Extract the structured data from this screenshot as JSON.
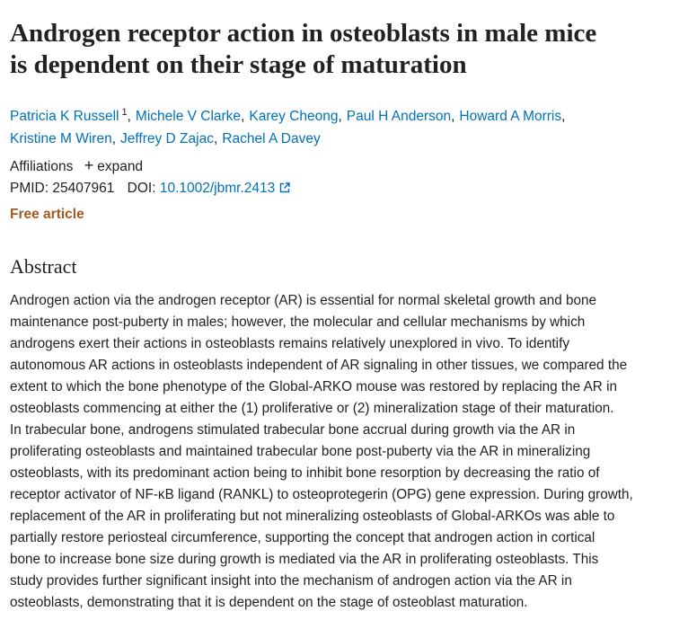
{
  "title_lines": [
    "Androgen receptor action in osteoblasts in male mice",
    "is dependent on their stage of maturation"
  ],
  "authors": [
    [
      "Patricia K Russell",
      "Michele V Clarke",
      "Karey Cheong",
      "Paul H Anderson",
      "Howard A Morris"
    ],
    [
      "Kristine M Wiren",
      "Jeffrey D Zajac",
      "Rachel A Davey"
    ]
  ],
  "first_author_affiliation": "1",
  "author_separator": ",",
  "affiliations": {
    "label": "Affiliations",
    "expand_icon": "+",
    "expand": "expand"
  },
  "identifiers": {
    "pmid_label": "PMID:",
    "pmid": "25407961",
    "doi_label": "DOI:",
    "doi": "10.1002/jbmr.2413"
  },
  "free_article": "Free article",
  "abstract": {
    "heading": "Abstract",
    "lines": [
      "Androgen action via the androgen receptor (AR) is essential for normal skeletal growth and bone",
      "maintenance post-puberty in males; however, the molecular and cellular mechanisms by which",
      "androgens exert their actions in osteoblasts remains relatively unexplored in vivo. To identify",
      "autonomous AR actions in osteoblasts independent of AR signaling in other tissues, we compared the",
      "extent to which the bone phenotype of the Global-ARKO mouse was restored by replacing the AR in",
      "osteoblasts commencing at either the (1) proliferative or (2) mineralization stage of their maturation.",
      "In trabecular bone, androgens stimulated trabecular bone accrual during growth via the AR in",
      "proliferating osteoblasts and maintained trabecular bone post-puberty via the AR in mineralizing",
      "osteoblasts, with its predominant action being to inhibit bone resorption by decreasing the ratio of",
      "receptor activator of NF-κB ligand (RANKL) to osteoprotegerin (OPG) gene expression. During growth,",
      "replacement of the AR in proliferating but not mineralizing osteoblasts of Global-ARKOs was able to",
      "partially restore periosteal circumference, supporting the concept that androgen action in cortical",
      "bone to increase bone size during growth is mediated via the AR in proliferating osteoblasts. This",
      "study provides further significant insight into the mechanism of androgen action via the AR in",
      "osteoblasts, demonstrating that it is dependent on the stage of osteoblast maturation."
    ]
  }
}
